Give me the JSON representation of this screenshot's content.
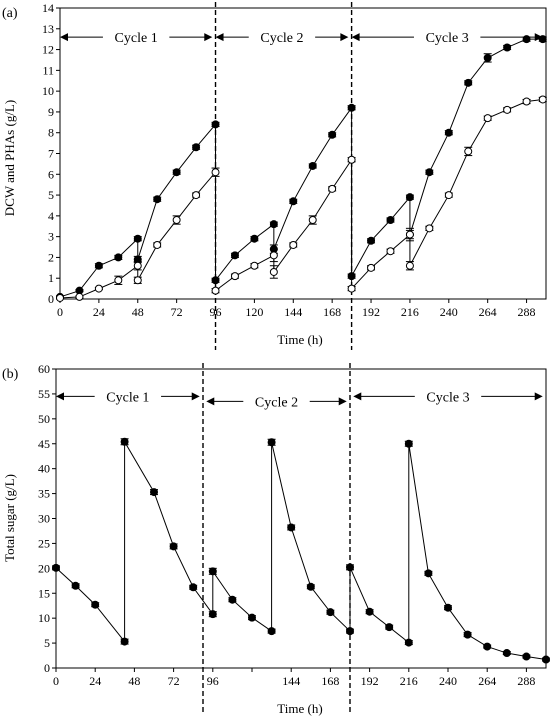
{
  "chart_data": [
    {
      "id": "a",
      "type": "line",
      "panel_label": "(a)",
      "xlabel": "Time (h)",
      "ylabel": "DCW and PHAs (g/L)",
      "xlim": [
        0,
        300
      ],
      "ylim": [
        0,
        14
      ],
      "xticks": [
        0,
        24,
        48,
        72,
        96,
        120,
        144,
        168,
        192,
        216,
        240,
        264,
        288
      ],
      "yticks": [
        0,
        1,
        2,
        3,
        4,
        5,
        6,
        7,
        8,
        9,
        10,
        11,
        12,
        13,
        14
      ],
      "cycle_dividers": [
        96,
        180
      ],
      "cycles": [
        {
          "label": "Cycle 1",
          "x0": 0,
          "x1": 94,
          "y": 12.6
        },
        {
          "label": "Cycle 2",
          "x0": 96,
          "x1": 178,
          "y": 12.6
        },
        {
          "label": "Cycle 3",
          "x0": 180,
          "x1": 298,
          "y": 12.6
        }
      ],
      "series": [
        {
          "marker": "filled",
          "x": [
            0,
            12,
            24,
            36,
            48,
            48,
            60,
            72,
            84,
            96,
            96,
            108,
            120,
            132,
            132,
            144,
            156,
            168,
            180,
            180,
            192,
            204,
            216,
            216,
            228,
            240,
            252,
            264,
            276,
            288,
            298
          ],
          "y": [
            0.1,
            0.4,
            1.6,
            2.0,
            2.9,
            1.9,
            4.8,
            6.1,
            7.3,
            8.4,
            0.9,
            2.1,
            2.9,
            3.6,
            2.4,
            4.7,
            6.4,
            7.9,
            9.2,
            1.1,
            2.8,
            3.8,
            4.9,
            3.1,
            6.1,
            8.0,
            10.4,
            11.6,
            12.1,
            12.5,
            12.5
          ],
          "errors": [
            0.05,
            0.05,
            0.1,
            0.1,
            0.1,
            0.15,
            0.1,
            0.1,
            0.1,
            0.1,
            0.1,
            0.1,
            0.1,
            0.1,
            0.2,
            0.1,
            0.1,
            0.1,
            0.1,
            0.1,
            0.1,
            0.1,
            0.1,
            0.2,
            0.1,
            0.1,
            0.1,
            0.2,
            0.1,
            0.1,
            0.1
          ]
        },
        {
          "marker": "open",
          "x": [
            0,
            12,
            24,
            36,
            48,
            48,
            60,
            72,
            84,
            96,
            96,
            108,
            120,
            132,
            132,
            144,
            156,
            168,
            180,
            180,
            192,
            204,
            216,
            216,
            228,
            240,
            252,
            264,
            276,
            288,
            298
          ],
          "y": [
            0.05,
            0.1,
            0.5,
            0.9,
            1.6,
            0.9,
            2.6,
            3.8,
            5.0,
            6.1,
            0.4,
            1.1,
            1.6,
            2.1,
            1.3,
            2.6,
            3.8,
            5.3,
            6.7,
            0.5,
            1.5,
            2.3,
            3.1,
            1.6,
            3.4,
            5.0,
            7.1,
            8.7,
            9.1,
            9.5,
            9.6
          ],
          "errors": [
            0.05,
            0.05,
            0.05,
            0.2,
            0.2,
            0.15,
            0.1,
            0.2,
            0.1,
            0.2,
            0.1,
            0.1,
            0.1,
            0.3,
            0.3,
            0.1,
            0.2,
            0.1,
            0.1,
            0.1,
            0.1,
            0.1,
            0.3,
            0.2,
            0.1,
            0.1,
            0.2,
            0.1,
            0.1,
            0.1,
            0.1
          ]
        }
      ]
    },
    {
      "id": "b",
      "type": "line",
      "panel_label": "(b)",
      "xlabel": "Time (h)",
      "ylabel": "Total sugar (g/L)",
      "xlim": [
        0,
        300
      ],
      "ylim": [
        0,
        60
      ],
      "xticks": [
        0,
        24,
        48,
        72,
        96,
        120,
        144,
        168,
        192,
        216,
        240,
        264,
        288
      ],
      "xtick_labels": [
        "0",
        "24",
        "48",
        "72",
        "96",
        "",
        "144",
        "168",
        "192",
        "216",
        "240",
        "264",
        "288"
      ],
      "yticks": [
        0,
        5,
        10,
        15,
        20,
        25,
        30,
        35,
        40,
        45,
        50,
        55,
        60
      ],
      "cycle_dividers": [
        90,
        180
      ],
      "cycles": [
        {
          "label": "Cycle 1",
          "x0": 0,
          "x1": 88,
          "y": 54.5
        },
        {
          "label": "Cycle 2",
          "x0": 92,
          "x1": 178,
          "y": 53.5
        },
        {
          "label": "Cycle 3",
          "x0": 182,
          "x1": 298,
          "y": 54.5
        }
      ],
      "series": [
        {
          "marker": "filled",
          "x": [
            0,
            12,
            24,
            42,
            42,
            60,
            72,
            84,
            96,
            96,
            108,
            120,
            132,
            132,
            144,
            156,
            168,
            180,
            180,
            192,
            204,
            216,
            216,
            228,
            240,
            252,
            264,
            276,
            288,
            300
          ],
          "y": [
            20.1,
            16.5,
            12.7,
            5.3,
            45.4,
            35.3,
            24.4,
            16.2,
            10.8,
            19.4,
            13.7,
            10.1,
            7.4,
            45.3,
            28.2,
            16.3,
            11.2,
            7.4,
            20.2,
            11.3,
            8.2,
            5.1,
            45.0,
            19.0,
            12.1,
            6.7,
            4.3,
            3.0,
            2.3,
            1.7
          ],
          "errors": [
            0.4,
            0.4,
            0.4,
            0.5,
            0.6,
            0.5,
            0.5,
            0.4,
            0.5,
            0.6,
            0.4,
            0.4,
            0.4,
            0.6,
            0.5,
            0.4,
            0.4,
            0.4,
            0.5,
            0.4,
            0.4,
            0.4,
            0.5,
            0.4,
            0.4,
            0.4,
            0.3,
            0.3,
            0.3,
            0.3
          ]
        }
      ]
    }
  ]
}
